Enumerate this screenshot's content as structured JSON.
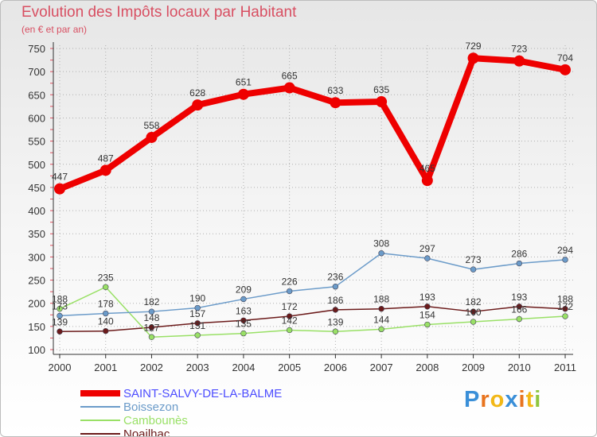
{
  "title": "Evolution des Impôts locaux par Habitant",
  "subtitle": "(en € et par an)",
  "logo_text": "Proxiti",
  "chart_data": {
    "type": "line",
    "title": "Evolution des Impôts locaux par Habitant",
    "subtitle": "(en € et par an)",
    "xlabel": "",
    "ylabel": "",
    "categories": [
      "2000",
      "2001",
      "2002",
      "2003",
      "2004",
      "2005",
      "2006",
      "2007",
      "2008",
      "2009",
      "2010",
      "2011"
    ],
    "ylim": [
      100,
      750
    ],
    "yticks": [
      100,
      150,
      200,
      250,
      300,
      350,
      400,
      450,
      500,
      550,
      600,
      650,
      700,
      750
    ],
    "legend_position": "bottom-left",
    "series": [
      {
        "name": "SAINT-SALVY-DE-LA-BALME",
        "color": "#ee0000",
        "label_color": "#4d4dff",
        "values": [
          447,
          487,
          558,
          628,
          651,
          665,
          633,
          635,
          465,
          729,
          723,
          704
        ]
      },
      {
        "name": "Boissezon",
        "color": "#6b9bc9",
        "values": [
          173,
          178,
          182,
          190,
          209,
          226,
          236,
          308,
          297,
          273,
          286,
          294
        ]
      },
      {
        "name": "Cambounès",
        "color": "#99e066",
        "values": [
          188,
          235,
          127,
          131,
          135,
          142,
          139,
          144,
          154,
          160,
          166,
          172
        ]
      },
      {
        "name": "Noailhac",
        "color": "#6b1a1a",
        "values": [
          139,
          140,
          148,
          157,
          163,
          172,
          186,
          188,
          193,
          182,
          193,
          188
        ]
      }
    ]
  }
}
